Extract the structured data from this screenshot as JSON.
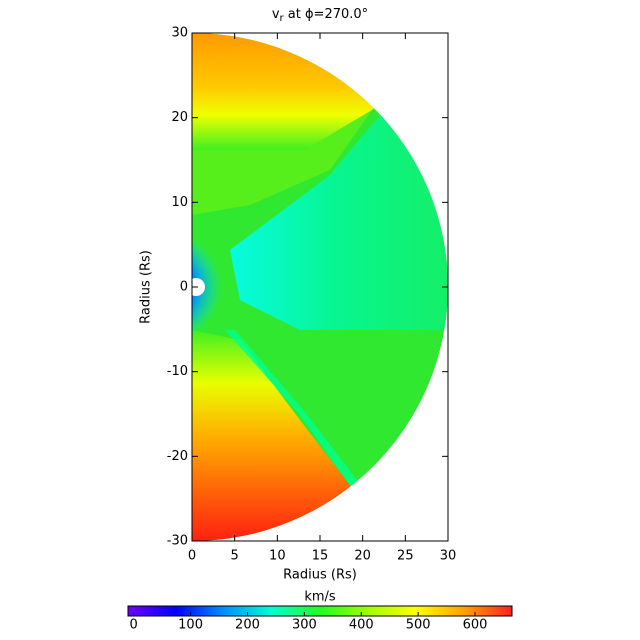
{
  "chart_data": {
    "type": "polar-map",
    "title": "v",
    "title_subscript": "r",
    "title_rest": " at ϕ=270.0°",
    "xlabel": "Radius (Rs)",
    "ylabel": "Radius (Rs)",
    "xlim": [
      0,
      30
    ],
    "xticks": [
      0,
      5,
      10,
      15,
      20,
      25,
      30
    ],
    "ylim": [
      -30,
      30
    ],
    "yticks": [
      -30,
      -20,
      -10,
      0,
      10,
      20,
      30
    ],
    "colorbar": {
      "label": "km/s",
      "lim": [
        -10,
        665
      ],
      "ticks": [
        0,
        100,
        200,
        300,
        400,
        500,
        600
      ],
      "colormap": [
        "#7000ff",
        "#0000ff",
        "#0090ff",
        "#00ffd0",
        "#20ff20",
        "#a0ff00",
        "#ffff00",
        "#ffa000",
        "#ff2020"
      ]
    }
  }
}
